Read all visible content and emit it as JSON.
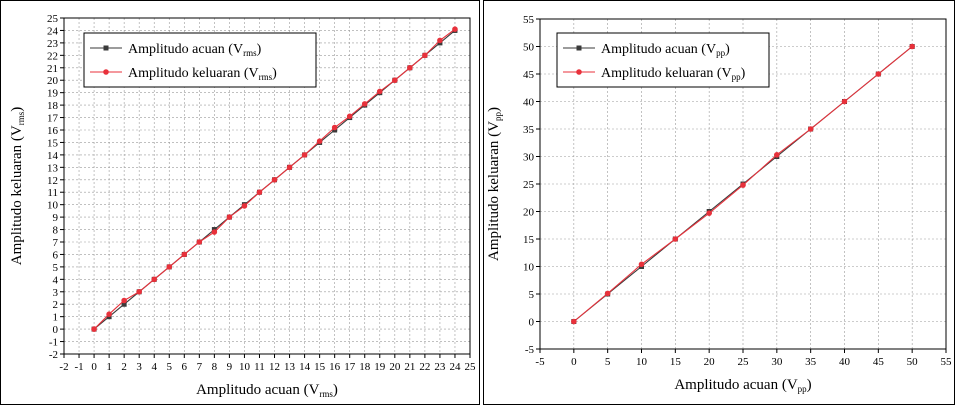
{
  "colors": {
    "ref_series": "#3a3a3a",
    "out_series": "#e8313b",
    "grid": "#9a9a9a",
    "watermark": "#f2f2f2"
  },
  "chart_data": [
    {
      "type": "line",
      "xlabel": "Amplitudo acuan (V",
      "xlabel_sub": "rms",
      "xlabel_tail": ")",
      "ylabel": "Amplitudo keluaran (V",
      "ylabel_sub": "rms",
      "ylabel_tail": ")",
      "xlim": [
        -2,
        25
      ],
      "ylim": [
        -2,
        25
      ],
      "xticks": [
        -2,
        -1,
        0,
        1,
        2,
        3,
        4,
        5,
        6,
        7,
        8,
        9,
        10,
        11,
        12,
        13,
        14,
        15,
        16,
        17,
        18,
        19,
        20,
        21,
        22,
        23,
        24,
        25
      ],
      "yticks": [
        -2,
        -1,
        0,
        1,
        2,
        3,
        4,
        5,
        6,
        7,
        8,
        9,
        10,
        11,
        12,
        13,
        14,
        15,
        16,
        17,
        18,
        19,
        20,
        21,
        22,
        23,
        24,
        25
      ],
      "grid": true,
      "legend_position": "top-left",
      "series": [
        {
          "name": "Amplitudo acuan (V",
          "name_sub": "rms",
          "name_tail": ")",
          "marker": "square",
          "x": [
            0,
            1,
            2,
            3,
            4,
            5,
            6,
            7,
            8,
            9,
            10,
            11,
            12,
            13,
            14,
            15,
            16,
            17,
            18,
            19,
            20,
            21,
            22,
            23,
            24
          ],
          "y": [
            0,
            1,
            2,
            3,
            4,
            5,
            6,
            7,
            8,
            9,
            10,
            11,
            12,
            13,
            14,
            15,
            16,
            17,
            18,
            19,
            20,
            21,
            22,
            23,
            24
          ]
        },
        {
          "name": "Amplitudo keluaran (V",
          "name_sub": "rms",
          "name_tail": ")",
          "marker": "circle",
          "x": [
            0,
            1,
            2,
            3,
            4,
            5,
            6,
            7,
            8,
            9,
            10,
            11,
            12,
            13,
            14,
            15,
            16,
            17,
            18,
            19,
            20,
            21,
            22,
            23,
            24
          ],
          "y": [
            0,
            1.2,
            2.3,
            3.0,
            4.0,
            5.0,
            6.0,
            7.0,
            7.8,
            9.0,
            9.9,
            11.0,
            12.0,
            13.0,
            14.0,
            15.1,
            16.2,
            17.1,
            18.1,
            19.1,
            20.0,
            21.0,
            22.0,
            23.2,
            24.1
          ]
        }
      ]
    },
    {
      "type": "line",
      "xlabel": "Amplitudo acuan (V",
      "xlabel_sub": "pp",
      "xlabel_tail": ")",
      "ylabel": "Amplitudo keluaran (V",
      "ylabel_sub": "pp",
      "ylabel_tail": ")",
      "xlim": [
        -5,
        55
      ],
      "ylim": [
        -5,
        55
      ],
      "xticks": [
        -5,
        0,
        5,
        10,
        15,
        20,
        25,
        30,
        35,
        40,
        45,
        50,
        55
      ],
      "yticks": [
        -5,
        0,
        5,
        10,
        15,
        20,
        25,
        30,
        35,
        40,
        45,
        50,
        55
      ],
      "grid": true,
      "legend_position": "top-left",
      "series": [
        {
          "name": "Amplitudo acuan (V",
          "name_sub": "pp",
          "name_tail": ")",
          "marker": "square",
          "x": [
            0,
            5,
            10,
            15,
            20,
            25,
            30,
            35,
            40,
            45,
            50
          ],
          "y": [
            0,
            5,
            10,
            15,
            20,
            25,
            30,
            35,
            40,
            45,
            50
          ]
        },
        {
          "name": "Amplitudo keluaran (V",
          "name_sub": "pp",
          "name_tail": ")",
          "marker": "circle",
          "x": [
            0,
            5,
            10,
            15,
            20,
            25,
            30,
            35,
            40,
            45,
            50
          ],
          "y": [
            0,
            5.1,
            10.4,
            15.0,
            19.7,
            24.8,
            30.3,
            35.0,
            40.0,
            45.0,
            50.0
          ]
        }
      ]
    }
  ]
}
